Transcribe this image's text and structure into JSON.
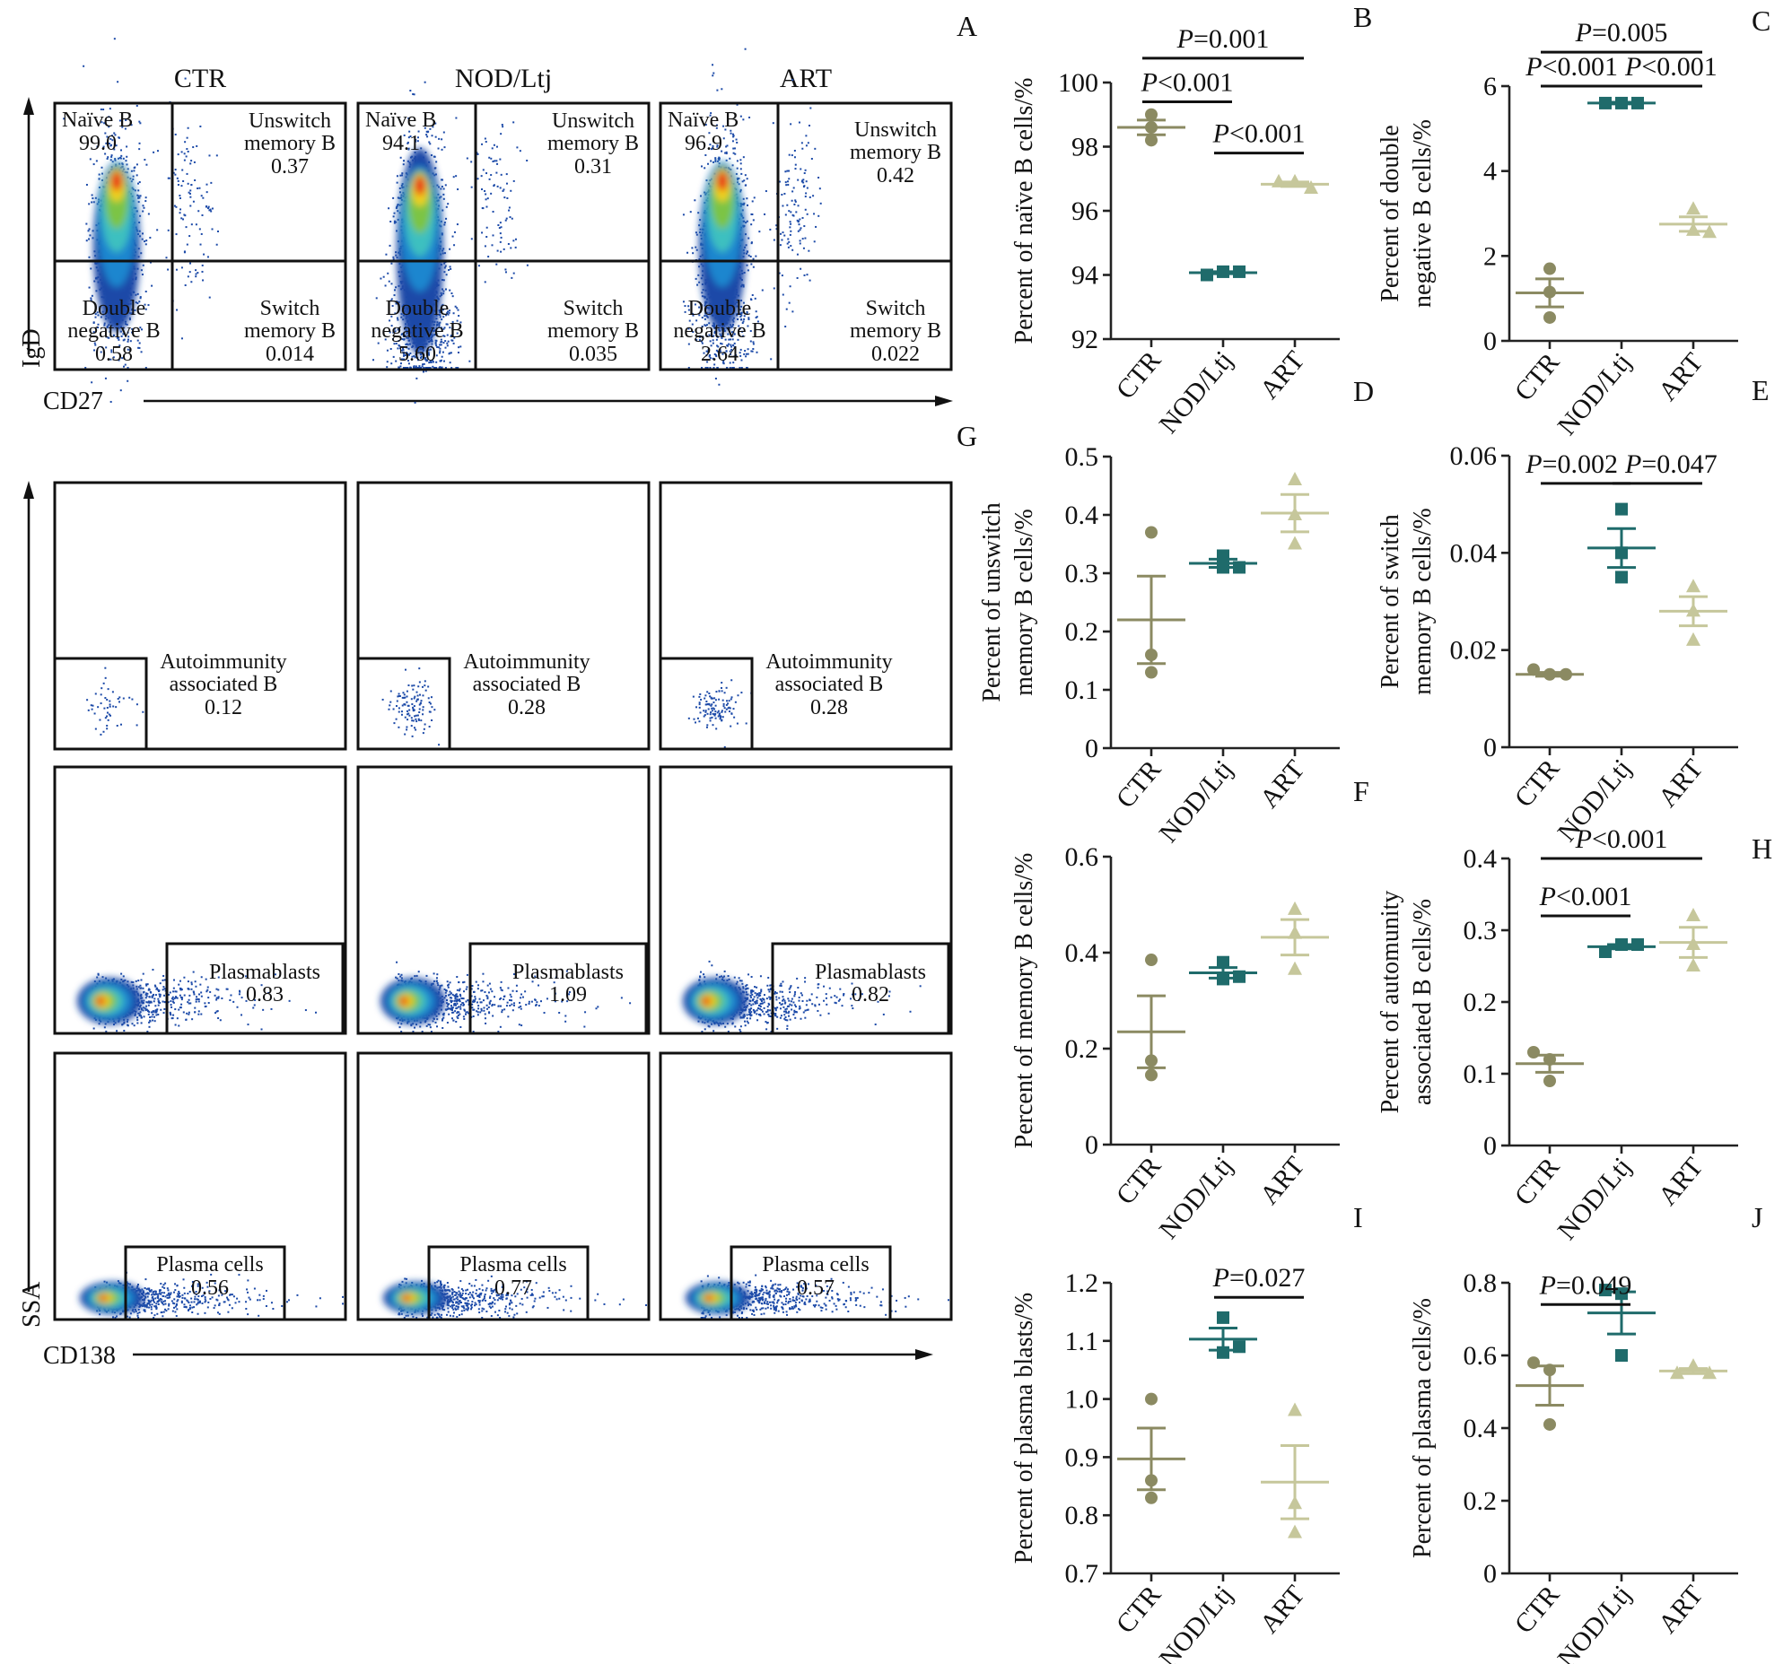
{
  "panel_labels": {
    "A": "A",
    "B": "B",
    "C": "C",
    "D": "D",
    "E": "E",
    "F": "F",
    "G": "G",
    "H": "H",
    "I": "I",
    "J": "J"
  },
  "flow": {
    "columns": [
      "CTR",
      "NOD/Ltj",
      "ART"
    ],
    "panel_A": {
      "x_axis": "CD27",
      "y_axis": "IgD",
      "quadrant_labels": {
        "naive": "Naïve B",
        "unswitch": [
          "Unswitch",
          "memory B"
        ],
        "double_negative": [
          "Double",
          "negative B"
        ],
        "switch": [
          "Switch",
          "memory B"
        ]
      },
      "values": [
        {
          "naive": "99.0",
          "unswitch": "0.37",
          "double_negative": "0.58",
          "switch": "0.014"
        },
        {
          "naive": "94.1",
          "unswitch": "0.31",
          "double_negative": "5.60",
          "switch": "0.035"
        },
        {
          "naive": "96.9",
          "unswitch": "0.42",
          "double_negative": "2.64",
          "switch": "0.022"
        }
      ]
    },
    "panel_G": {
      "x_axis": "CD138",
      "y_axis": "SSA",
      "rows": [
        {
          "gate_label": [
            "Autoimmunity",
            "associated B"
          ],
          "values": [
            "0.12",
            "0.28",
            "0.28"
          ]
        },
        {
          "gate_label": [
            "Plasmablasts"
          ],
          "values": [
            "0.83",
            "1.09",
            "0.82"
          ]
        },
        {
          "gate_label": [
            "Plasma cells"
          ],
          "values": [
            "0.56",
            "0.77",
            "0.57"
          ]
        }
      ]
    }
  },
  "colors": {
    "CTR": "#8b8a62",
    "NOD/Ltj": "#1f6b6b",
    "ART": "#c6c79b"
  },
  "markers": {
    "CTR": "circle",
    "NOD/Ltj": "square",
    "ART": "triangle"
  },
  "chart_data": [
    {
      "panel": "B",
      "type": "scatter",
      "categories": [
        "CTR",
        "NOD/Ltj",
        "ART"
      ],
      "ylabel": [
        "Percent of naïve B cells/%"
      ],
      "ylim": [
        92,
        100
      ],
      "yticks": [
        "92",
        "94",
        "96",
        "98",
        "100"
      ],
      "series": [
        [
          99.0,
          98.6,
          98.2
        ],
        [
          94.0,
          94.1,
          94.1
        ],
        [
          96.9,
          96.9,
          96.7
        ]
      ],
      "mean": [
        98.6,
        94.07,
        96.83
      ],
      "sem": [
        0.23,
        0.03,
        0.07
      ],
      "significance": [
        {
          "from": 0,
          "to": 2,
          "p": "P",
          "text": "=0.001",
          "y": 100.76
        },
        {
          "from": 0,
          "to": 1,
          "p": "P",
          "text": "<0.001",
          "y": 99.4
        },
        {
          "from": 1,
          "to": 2,
          "p": "P",
          "text": "<0.001",
          "y": 97.8
        }
      ]
    },
    {
      "panel": "C",
      "type": "scatter",
      "categories": [
        "CTR",
        "NOD/Ltj",
        "ART"
      ],
      "ylabel": [
        "Percent of double",
        "negative B cells/%"
      ],
      "ylim": [
        0,
        6
      ],
      "yticks": [
        "0",
        "2",
        "4",
        "6"
      ],
      "series": [
        [
          1.7,
          1.15,
          0.55
        ],
        [
          5.6,
          5.6,
          5.6
        ],
        [
          3.1,
          2.6,
          2.55
        ]
      ],
      "mean": [
        1.13,
        5.6,
        2.75
      ],
      "sem": [
        0.33,
        0.02,
        0.17
      ],
      "significance": [
        {
          "from": 0,
          "to": 2,
          "p": "P",
          "text": "=0.005",
          "y": 6.8
        },
        {
          "from": 0,
          "to": 1,
          "p": "P",
          "text": "<0.001",
          "y": 6.0
        },
        {
          "from": 1,
          "to": 2,
          "p": "P",
          "text": "<0.001",
          "y": 6.0
        }
      ]
    },
    {
      "panel": "D",
      "type": "scatter",
      "categories": [
        "CTR",
        "NOD/Ltj",
        "ART"
      ],
      "ylabel": [
        "Percent of unswitch",
        "memory B cells/%"
      ],
      "ylim": [
        0,
        0.5
      ],
      "yticks": [
        "0",
        "0.1",
        "0.2",
        "0.3",
        "0.4",
        "0.5"
      ],
      "series": [
        [
          0.37,
          0.16,
          0.13
        ],
        [
          0.33,
          0.31,
          0.31
        ],
        [
          0.46,
          0.4,
          0.35
        ]
      ],
      "mean": [
        0.22,
        0.317,
        0.403
      ],
      "sem": [
        0.075,
        0.007,
        0.032
      ],
      "significance": []
    },
    {
      "panel": "E",
      "type": "scatter",
      "categories": [
        "CTR",
        "NOD/Ltj",
        "ART"
      ],
      "ylabel": [
        "Percent of switch",
        "memory B cells/%"
      ],
      "ylim": [
        0,
        0.06
      ],
      "yticks": [
        "0",
        "0.02",
        "0.04",
        "0.06"
      ],
      "series": [
        [
          0.016,
          0.015,
          0.015
        ],
        [
          0.049,
          0.04,
          0.035
        ],
        [
          0.033,
          0.028,
          0.022
        ]
      ],
      "mean": [
        0.015,
        0.041,
        0.028
      ],
      "sem": [
        0.0004,
        0.004,
        0.003
      ],
      "significance": [
        {
          "from": 0,
          "to": 1,
          "p": "P",
          "text": "=0.002",
          "y": 0.0543
        },
        {
          "from": 1,
          "to": 2,
          "p": "P",
          "text": "=0.047",
          "y": 0.0543
        }
      ]
    },
    {
      "panel": "F",
      "type": "scatter",
      "categories": [
        "CTR",
        "NOD/Ltj",
        "ART"
      ],
      "ylabel": [
        "Percent of memory B cells/%"
      ],
      "ylim": [
        0,
        0.6
      ],
      "yticks": [
        "0",
        "0.2",
        "0.4",
        "0.6"
      ],
      "series": [
        [
          0.385,
          0.175,
          0.145
        ],
        [
          0.38,
          0.345,
          0.35
        ],
        [
          0.49,
          0.44,
          0.365
        ]
      ],
      "mean": [
        0.235,
        0.358,
        0.432
      ],
      "sem": [
        0.075,
        0.011,
        0.037
      ],
      "significance": []
    },
    {
      "panel": "H",
      "type": "scatter",
      "categories": [
        "CTR",
        "NOD/Ltj",
        "ART"
      ],
      "ylabel": [
        "Percent of automunity",
        "associated B cells/%"
      ],
      "ylim": [
        0,
        0.4
      ],
      "yticks": [
        "0",
        "0.1",
        "0.2",
        "0.3",
        "0.4"
      ],
      "series": [
        [
          0.13,
          0.12,
          0.09
        ],
        [
          0.27,
          0.28,
          0.28
        ],
        [
          0.32,
          0.28,
          0.25
        ]
      ],
      "mean": [
        0.114,
        0.277,
        0.283
      ],
      "sem": [
        0.012,
        0.003,
        0.021
      ],
      "significance": [
        {
          "from": 0,
          "to": 2,
          "p": "P",
          "text": "<0.001",
          "y": 0.4
        },
        {
          "from": 0,
          "to": 1,
          "p": "P",
          "text": "<0.001",
          "y": 0.32
        }
      ]
    },
    {
      "panel": "I",
      "type": "scatter",
      "categories": [
        "CTR",
        "NOD/Ltj",
        "ART"
      ],
      "ylabel": [
        "Percent of plasma blasts/%"
      ],
      "ylim": [
        0.7,
        1.2
      ],
      "yticks": [
        "0.7",
        "0.8",
        "0.9",
        "1.0",
        "1.1",
        "1.2"
      ],
      "series": [
        [
          1.0,
          0.86,
          0.83
        ],
        [
          1.14,
          1.08,
          1.09
        ],
        [
          0.98,
          0.82,
          0.77
        ]
      ],
      "mean": [
        0.897,
        1.103,
        0.857
      ],
      "sem": [
        0.053,
        0.019,
        0.063
      ],
      "significance": [
        {
          "from": 1,
          "to": 2,
          "p": "P",
          "text": "=0.027",
          "y": 1.175
        }
      ]
    },
    {
      "panel": "J",
      "type": "scatter",
      "categories": [
        "CTR",
        "NOD/Ltj",
        "ART"
      ],
      "ylabel": [
        "Percent of plasma cells/%"
      ],
      "ylim": [
        0,
        0.8
      ],
      "yticks": [
        "0",
        "0.2",
        "0.4",
        "0.6",
        "0.8"
      ],
      "series": [
        [
          0.58,
          0.56,
          0.41
        ],
        [
          0.78,
          0.77,
          0.6
        ],
        [
          0.55,
          0.57,
          0.55
        ]
      ],
      "mean": [
        0.517,
        0.717,
        0.557
      ],
      "sem": [
        0.054,
        0.058,
        0.007
      ],
      "significance": [
        {
          "from": 0,
          "to": 1,
          "p": "P",
          "text": "=0.049",
          "y": 0.74
        }
      ]
    }
  ]
}
